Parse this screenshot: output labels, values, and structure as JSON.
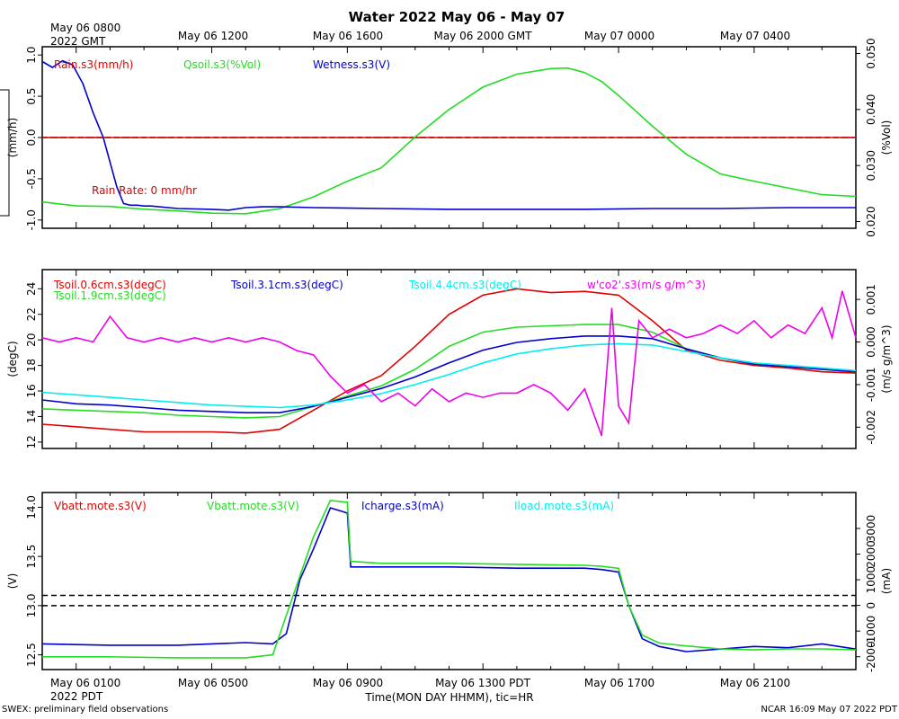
{
  "title": "Water 2022 May 06 - May 07",
  "footer_left": "SWEX: preliminary field observations",
  "footer_right": "NCAR 16:09 May 07 2022 PDT",
  "xlabel": "Time(MON DAY HHMM), tic=HR",
  "top_axis": {
    "first_tick": [
      "May 06 0800",
      "2022 GMT"
    ],
    "ticks": [
      "May 06 1200",
      "May 06 1600",
      "May 06 2000 GMT",
      "May 07 0000",
      "May 07 0400"
    ]
  },
  "bottom_axis": {
    "first_tick": [
      "May 06 0100",
      "2022 PDT"
    ],
    "ticks": [
      "May 06 0500",
      "May 06 0900",
      "May 06 1300 PDT",
      "May 06 1700",
      "May 06 2100"
    ]
  },
  "colors": {
    "red": "#e00000",
    "green": "#22dd22",
    "blue": "#0000cc",
    "cyan": "#00eeee",
    "magenta": "#ee00ee",
    "black": "#000000"
  },
  "chart_data": [
    {
      "type": "line",
      "panel": "water",
      "x_unit": "hours since May 06 0000 PDT",
      "xlim": [
        0,
        24
      ],
      "left_axis": {
        "label": "(mm/h)",
        "ylim": [
          -1.1,
          1.1
        ],
        "ticks": [
          1.0,
          0.5,
          0.0,
          -0.5,
          -1.0
        ],
        "tick_labels": [
          "1.0",
          "0.5",
          "0.0",
          "-0.5",
          "-1.0"
        ]
      },
      "right_axis": {
        "label": "(%Vol)",
        "ylim": [
          0.0188,
          0.0512
        ],
        "ticks": [
          0.05,
          0.04,
          0.03,
          0.02
        ],
        "tick_labels": [
          "0.050",
          "0.040",
          "0.030",
          "0.020"
        ]
      },
      "reference_line": 0,
      "legend": [
        "Rain.s3(mm/h)",
        "Qsoil.s3(%Vol)",
        "Wetness.s3(V)"
      ],
      "annotation": "Rain Rate: 0 mm/hr",
      "series": [
        {
          "name": "Rain.s3(mm/h)",
          "color": "red",
          "axis": "left",
          "x": [
            0,
            24
          ],
          "y": [
            0,
            0
          ]
        },
        {
          "name": "Qsoil.s3(%Vol)",
          "color": "green",
          "axis": "right",
          "x": [
            0,
            1,
            2,
            3,
            4,
            5,
            6,
            7,
            8,
            9,
            10,
            11,
            12,
            13,
            14,
            15,
            15.5,
            16,
            16.5,
            17,
            18,
            19,
            20,
            21,
            22,
            23,
            24
          ],
          "y": [
            0.0235,
            0.0228,
            0.0227,
            0.0222,
            0.0219,
            0.0215,
            0.0214,
            0.0223,
            0.0244,
            0.0272,
            0.0296,
            0.0351,
            0.04,
            0.044,
            0.0463,
            0.0473,
            0.0474,
            0.0466,
            0.045,
            0.0425,
            0.037,
            0.032,
            0.0285,
            0.0272,
            0.026,
            0.0248,
            0.0245
          ]
        },
        {
          "name": "Wetness.s3(V)",
          "color": "blue",
          "axis": "left",
          "x": [
            0,
            0.3,
            0.6,
            0.9,
            1.2,
            1.5,
            1.8,
            2.0,
            2.2,
            2.4,
            2.6,
            2.8,
            3.0,
            3.2,
            4,
            5,
            5.5,
            6,
            6.5,
            7,
            8,
            10,
            12,
            14,
            16,
            18,
            20,
            22,
            24
          ],
          "y": [
            0.92,
            0.85,
            0.93,
            0.88,
            0.65,
            0.3,
            0.0,
            -0.3,
            -0.6,
            -0.8,
            -0.82,
            -0.82,
            -0.83,
            -0.83,
            -0.86,
            -0.87,
            -0.88,
            -0.85,
            -0.84,
            -0.84,
            -0.85,
            -0.86,
            -0.87,
            -0.87,
            -0.87,
            -0.86,
            -0.86,
            -0.85,
            -0.85
          ]
        }
      ]
    },
    {
      "type": "line",
      "panel": "soil temperature and flux",
      "x_unit": "hours since May 06 0000 PDT",
      "xlim": [
        0,
        24
      ],
      "left_axis": {
        "label": "(degC)",
        "ylim": [
          11.5,
          25.5
        ],
        "ticks": [
          24,
          22,
          20,
          18,
          16,
          14,
          12
        ],
        "tick_labels": [
          "24",
          "22",
          "20",
          "18",
          "16",
          "14",
          "12"
        ]
      },
      "right_axis": {
        "label": "(m/s g/m^3)",
        "ylim": [
          -0.0025,
          0.0017
        ],
        "ticks": [
          0.001,
          0.0,
          -0.001,
          -0.002
        ],
        "tick_labels": [
          "0.001",
          "0.000",
          "-0.001",
          "-0.002"
        ]
      },
      "reference_line": 0,
      "legend": [
        "Tsoil.0.6cm.s3(degC)",
        "Tsoil.1.9cm.s3(degC)",
        "Tsoil.3.1cm.s3(degC)",
        "Tsoil.4.4cm.s3(degC)",
        "w'co2'.s3(m/s g/m^3)"
      ],
      "series": [
        {
          "name": "Tsoil.0.6cm.s3(degC)",
          "color": "red",
          "axis": "left",
          "x": [
            0,
            1,
            2,
            3,
            4,
            5,
            6,
            7,
            8,
            9,
            10,
            11,
            12,
            13,
            14,
            15,
            16,
            17,
            18,
            19,
            20,
            21,
            22,
            23,
            24
          ],
          "y": [
            13.4,
            13.2,
            13.0,
            12.8,
            12.8,
            12.8,
            12.7,
            13.0,
            14.5,
            16.0,
            17.2,
            19.5,
            22.0,
            23.5,
            24.0,
            23.7,
            23.8,
            23.5,
            21.5,
            19.2,
            18.4,
            18.0,
            17.8,
            17.5,
            17.4
          ]
        },
        {
          "name": "Tsoil.1.9cm.s3(degC)",
          "color": "green",
          "axis": "left",
          "x": [
            0,
            1,
            2,
            3,
            4,
            5,
            6,
            7,
            8,
            9,
            10,
            11,
            12,
            13,
            14,
            15,
            16,
            17,
            18,
            19,
            20,
            21,
            22,
            23,
            24
          ],
          "y": [
            14.6,
            14.5,
            14.4,
            14.3,
            14.1,
            14.0,
            13.9,
            14.0,
            14.8,
            15.6,
            16.4,
            17.7,
            19.5,
            20.6,
            21.0,
            21.1,
            21.2,
            21.2,
            20.6,
            19.3,
            18.6,
            18.1,
            17.9,
            17.7,
            17.5
          ]
        },
        {
          "name": "Tsoil.3.1cm.s3(degC)",
          "color": "blue",
          "axis": "left",
          "x": [
            0,
            1,
            2,
            3,
            4,
            5,
            6,
            7,
            8,
            9,
            10,
            11,
            12,
            13,
            14,
            15,
            16,
            17,
            18,
            19,
            20,
            21,
            22,
            23,
            24
          ],
          "y": [
            15.3,
            15.0,
            14.9,
            14.7,
            14.5,
            14.4,
            14.3,
            14.3,
            14.8,
            15.5,
            16.2,
            17.1,
            18.2,
            19.2,
            19.8,
            20.1,
            20.3,
            20.3,
            20.1,
            19.3,
            18.6,
            18.1,
            17.9,
            17.7,
            17.5
          ]
        },
        {
          "name": "Tsoil.4.4cm.s3(degC)",
          "color": "cyan",
          "axis": "left",
          "x": [
            0,
            1,
            2,
            3,
            4,
            5,
            6,
            7,
            8,
            9,
            10,
            11,
            12,
            13,
            14,
            15,
            16,
            17,
            18,
            19,
            20,
            21,
            22,
            23,
            24
          ],
          "y": [
            15.9,
            15.7,
            15.5,
            15.3,
            15.1,
            14.9,
            14.8,
            14.7,
            14.9,
            15.3,
            15.8,
            16.5,
            17.3,
            18.2,
            18.9,
            19.3,
            19.6,
            19.7,
            19.6,
            19.1,
            18.6,
            18.2,
            18.0,
            17.8,
            17.6
          ]
        },
        {
          "name": "w'co2'.s3(m/s g/m^3)",
          "color": "magenta",
          "axis": "right",
          "x": [
            0,
            0.5,
            1,
            1.5,
            2,
            2.5,
            3,
            3.5,
            4,
            4.5,
            5,
            5.5,
            6,
            6.5,
            7,
            7.5,
            8,
            8.5,
            9,
            9.5,
            10,
            10.5,
            11,
            11.5,
            12,
            12.5,
            13,
            13.5,
            14,
            14.5,
            15,
            15.5,
            16,
            16.5,
            16.8,
            17,
            17.3,
            17.6,
            18,
            18.5,
            19,
            19.5,
            20,
            20.5,
            21,
            21.5,
            22,
            22.5,
            23,
            23.3,
            23.6,
            24
          ],
          "y": [
            0.0001,
            0.0,
            0.0001,
            0.0,
            0.0006,
            0.0001,
            0.0,
            0.0001,
            0.0,
            0.0001,
            0.0,
            0.0001,
            0.0,
            0.0001,
            0.0,
            -0.0002,
            -0.0003,
            -0.0008,
            -0.0012,
            -0.001,
            -0.0014,
            -0.0012,
            -0.0015,
            -0.0011,
            -0.0014,
            -0.0012,
            -0.0013,
            -0.0012,
            -0.0012,
            -0.001,
            -0.0012,
            -0.0016,
            -0.0011,
            -0.0022,
            0.0008,
            -0.0015,
            -0.0019,
            0.0005,
            0.0001,
            0.0003,
            0.0001,
            0.0002,
            0.0004,
            0.0002,
            0.0005,
            0.0001,
            0.0004,
            0.0002,
            0.0008,
            0.0001,
            0.0012,
            0.0001
          ]
        }
      ]
    },
    {
      "type": "line",
      "panel": "power",
      "x_unit": "hours since May 06 0000 PDT",
      "xlim": [
        0,
        24
      ],
      "left_axis": {
        "label": "(V)",
        "ylim": [
          12.35,
          14.15
        ],
        "ticks": [
          14.0,
          13.5,
          13.0,
          12.5
        ],
        "tick_labels": [
          "14.0",
          "13.5",
          "13.0",
          "12.5"
        ]
      },
      "right_axis": {
        "label": "(mA)",
        "ylim": [
          -2500,
          4400
        ],
        "ticks": [
          3000,
          2000,
          1000,
          0,
          -1000,
          -2000
        ],
        "tick_labels": [
          "3000",
          "2000",
          "1000",
          "0",
          "-1000",
          "-2000"
        ]
      },
      "reference_line": 13.0,
      "legend": [
        "Vbatt.mote.s3(V)",
        "Vbatt.mote.s3(V)",
        "Icharge.s3(mA)",
        "Iload.mote.s3(mA)"
      ],
      "series": [
        {
          "name": "Icharge.s3(mA)",
          "color": "blue",
          "axis": "right",
          "x": [
            0,
            2,
            4,
            6,
            6.8,
            7.2,
            7.6,
            8.0,
            8.5,
            9.0,
            9.1,
            10,
            12,
            14,
            16,
            16.5,
            17.0,
            17.3,
            17.7,
            18.2,
            19,
            20,
            21,
            22,
            23,
            24
          ],
          "y": [
            -1500,
            -1550,
            -1550,
            -1450,
            -1500,
            -1100,
            1000,
            2200,
            3800,
            3600,
            1500,
            1500,
            1500,
            1450,
            1450,
            1400,
            1300,
            0,
            -1300,
            -1600,
            -1800,
            -1700,
            -1600,
            -1650,
            -1500,
            -1700
          ]
        },
        {
          "name": "Vbatt.mote.s3(V)",
          "color": "green",
          "axis": "left",
          "x": [
            0,
            2,
            4,
            6,
            6.8,
            7.2,
            7.6,
            8.0,
            8.5,
            9.0,
            9.1,
            10,
            12,
            14,
            16,
            16.5,
            17.0,
            17.3,
            17.7,
            18.2,
            19,
            20,
            21,
            22,
            23,
            24
          ],
          "y": [
            12.48,
            12.48,
            12.47,
            12.47,
            12.5,
            12.9,
            13.3,
            13.7,
            14.07,
            14.05,
            13.45,
            13.43,
            13.43,
            13.42,
            13.41,
            13.4,
            13.38,
            13.0,
            12.7,
            12.62,
            12.59,
            12.56,
            12.55,
            12.56,
            12.56,
            12.55
          ]
        },
        {
          "name": "Vbatt.mote.s3(V) red",
          "color": "red",
          "axis": "left",
          "x": [],
          "y": []
        },
        {
          "name": "Iload.mote.s3(mA)",
          "color": "cyan",
          "axis": "right",
          "x": [],
          "y": []
        }
      ]
    }
  ]
}
